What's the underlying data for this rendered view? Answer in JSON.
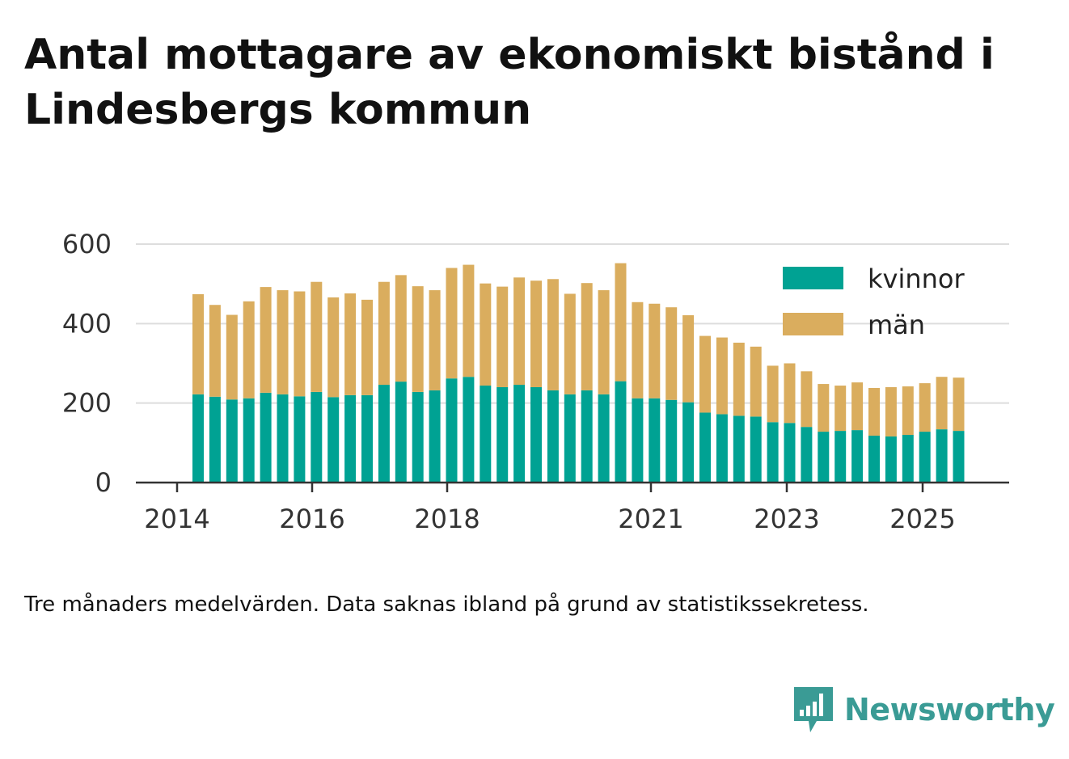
{
  "title": "Antal mottagare av ekonomiskt bistånd i Lindesbergs kommun",
  "note": "Tre månaders medelvärden. Data saknas ibland på grund av statistikssekretess.",
  "brand": {
    "name": "Newsworthy",
    "icon": "newsworthy-logo-icon",
    "color": "#3a9b95"
  },
  "chart_data": {
    "type": "bar",
    "stacked": true,
    "x_axis": {
      "ticks": [
        "2014",
        "2016",
        "2018",
        "2021",
        "2023",
        "2025"
      ]
    },
    "y_axis": {
      "ticks": [
        0,
        200,
        400,
        600
      ],
      "ylim": [
        0,
        600
      ]
    },
    "grid": "horizontal",
    "legend": {
      "position": "top-right"
    },
    "series": [
      {
        "name": "kvinnor",
        "color": "#00a293",
        "values": [
          222,
          216,
          209,
          212,
          226,
          222,
          217,
          228,
          215,
          220,
          220,
          246,
          254,
          228,
          232,
          262,
          266,
          244,
          240,
          246,
          240,
          232,
          222,
          232,
          222,
          255,
          212,
          212,
          208,
          202,
          176,
          172,
          168,
          166,
          152,
          150,
          140,
          128,
          130,
          132,
          118,
          116,
          120,
          128,
          134,
          130
        ]
      },
      {
        "name": "män",
        "color": "#daad5e",
        "values": [
          252,
          231,
          213,
          244,
          266,
          262,
          264,
          277,
          251,
          256,
          240,
          259,
          268,
          266,
          252,
          278,
          282,
          257,
          253,
          270,
          268,
          280,
          253,
          270,
          262,
          297,
          242,
          238,
          233,
          219,
          193,
          193,
          184,
          176,
          142,
          150,
          140,
          120,
          114,
          120,
          120,
          124,
          122,
          122,
          132,
          134
        ]
      }
    ]
  }
}
